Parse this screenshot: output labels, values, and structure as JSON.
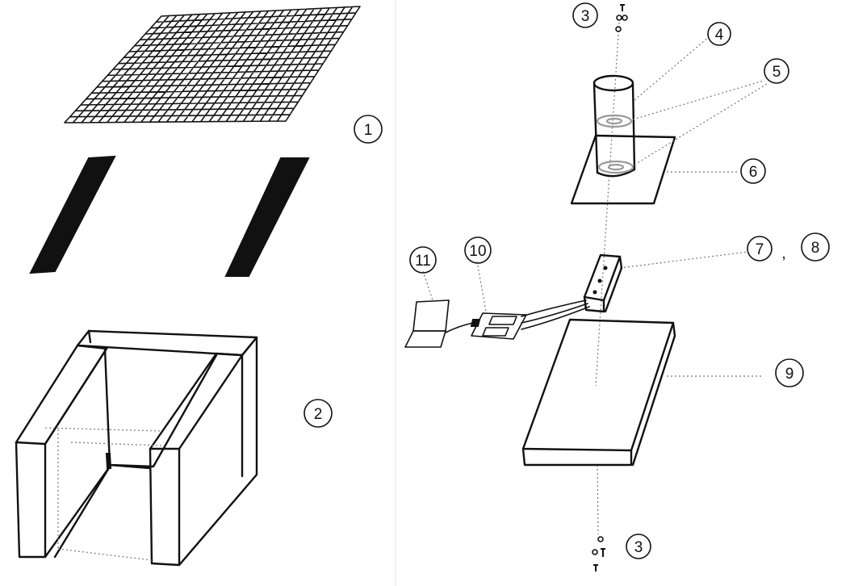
{
  "parts": {
    "p1": "1",
    "p2": "2",
    "p3_top": "3",
    "p4": "4",
    "p5": "5",
    "p6": "6",
    "p7": "7",
    "p8": "8",
    "p9": "9",
    "p10": "10",
    "p11": "11",
    "p3_bottom": "3",
    "separator": ","
  }
}
